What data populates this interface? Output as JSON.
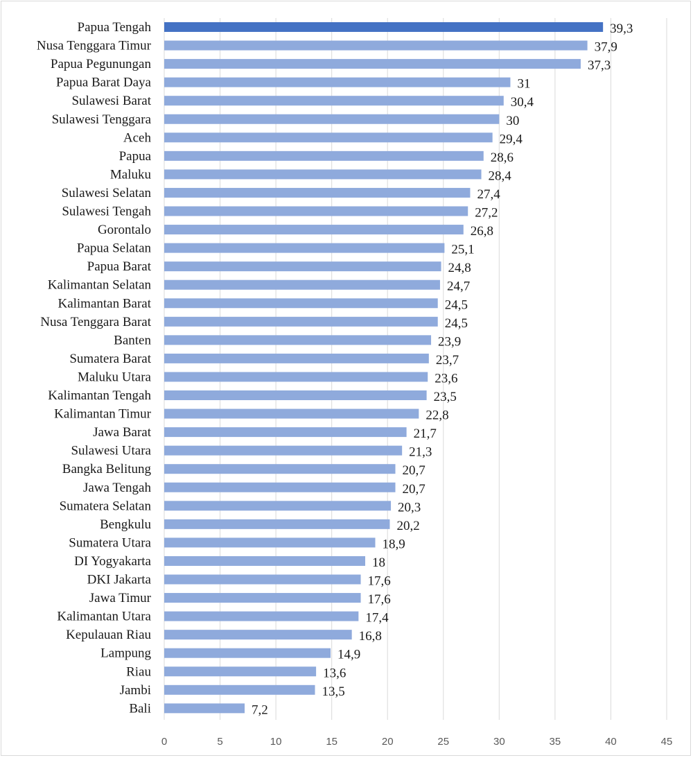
{
  "chart_data": {
    "type": "bar",
    "orientation": "horizontal",
    "categories": [
      "Papua Tengah",
      "Nusa Tenggara Timur",
      "Papua Pegunungan",
      "Papua Barat Daya",
      "Sulawesi Barat",
      "Sulawesi Tenggara",
      "Aceh",
      "Papua",
      "Maluku",
      "Sulawesi Selatan",
      "Sulawesi Tengah",
      "Gorontalo",
      "Papua Selatan",
      "Papua Barat",
      "Kalimantan Selatan",
      "Kalimantan Barat",
      "Nusa Tenggara Barat",
      "Banten",
      "Sumatera Barat",
      "Maluku Utara",
      "Kalimantan Tengah",
      "Kalimantan Timur",
      "Jawa Barat",
      "Sulawesi Utara",
      "Bangka Belitung",
      "Jawa Tengah",
      "Sumatera Selatan",
      "Bengkulu",
      "Sumatera Utara",
      "DI Yogyakarta",
      "DKI Jakarta",
      "Jawa Timur",
      "Kalimantan Utara",
      "Kepulauan Riau",
      "Lampung",
      "Riau",
      "Jambi",
      "Bali"
    ],
    "values": [
      39.3,
      37.9,
      37.3,
      31,
      30.4,
      30,
      29.4,
      28.6,
      28.4,
      27.4,
      27.2,
      26.8,
      25.1,
      24.8,
      24.7,
      24.5,
      24.5,
      23.9,
      23.7,
      23.6,
      23.5,
      22.8,
      21.7,
      21.3,
      20.7,
      20.7,
      20.3,
      20.2,
      18.9,
      18,
      17.6,
      17.6,
      17.4,
      16.8,
      14.9,
      13.6,
      13.5,
      7.2
    ],
    "value_labels": [
      "39,3",
      "37,9",
      "37,3",
      "31",
      "30,4",
      "30",
      "29,4",
      "28,6",
      "28,4",
      "27,4",
      "27,2",
      "26,8",
      "25,1",
      "24,8",
      "24,7",
      "24,5",
      "24,5",
      "23,9",
      "23,7",
      "23,6",
      "23,5",
      "22,8",
      "21,7",
      "21,3",
      "20,7",
      "20,7",
      "20,3",
      "20,2",
      "18,9",
      "18",
      "17,6",
      "17,6",
      "17,4",
      "16,8",
      "14,9",
      "13,6",
      "13,5",
      "7,2"
    ],
    "xlim": [
      0,
      45
    ],
    "xticks": [
      0,
      5,
      10,
      15,
      20,
      25,
      30,
      35,
      40,
      45
    ],
    "xtick_labels": [
      "0",
      "5",
      "10",
      "15",
      "20",
      "25",
      "30",
      "35",
      "40",
      "45"
    ],
    "grid": true,
    "highlight_index": 0,
    "colors": {
      "bar": "#8faadc",
      "highlight": "#4472c4",
      "grid": "#d9d9d9"
    }
  }
}
